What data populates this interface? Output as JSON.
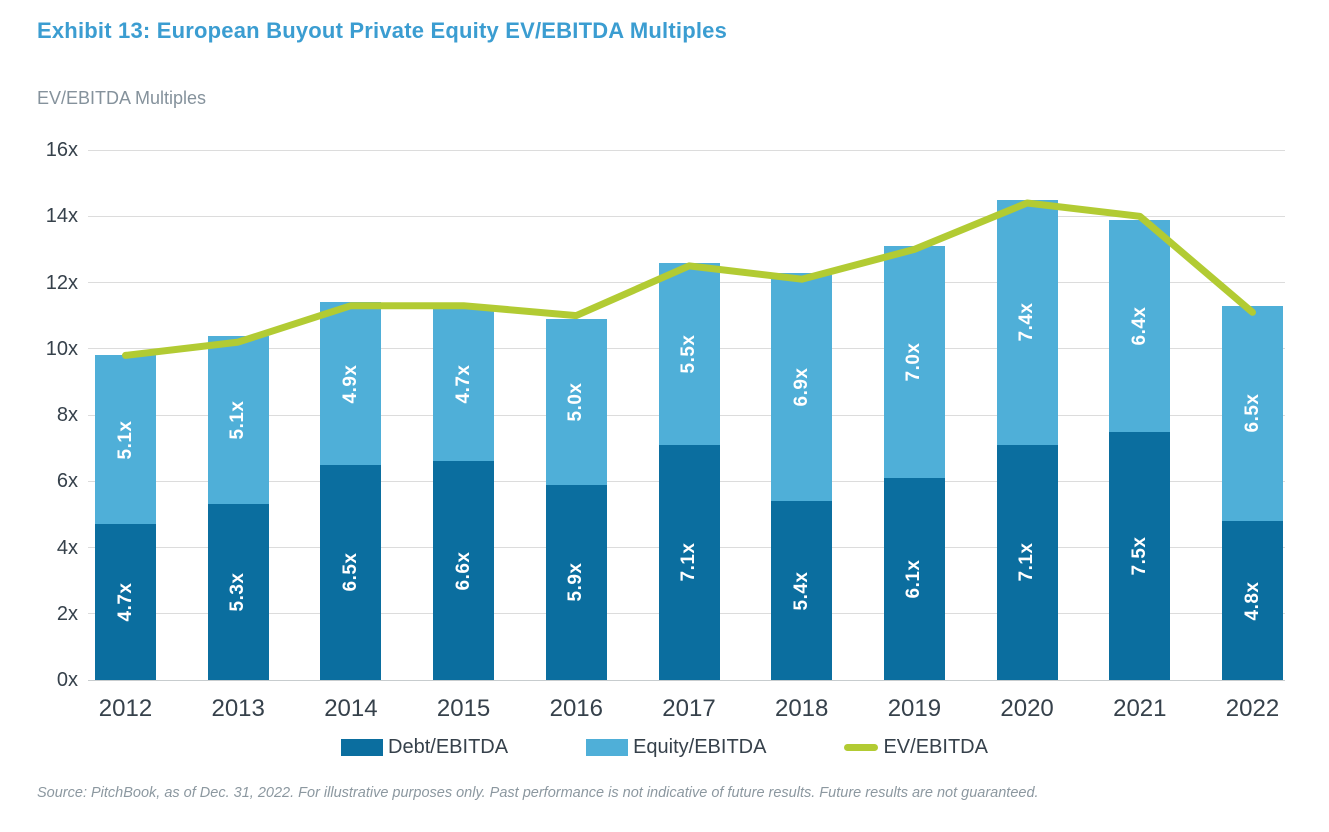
{
  "title": "Exhibit 13: European Buyout Private Equity EV/EBITDA Multiples",
  "subtitle": "EV/EBITDA Multiples",
  "source": "Source: PitchBook, as of Dec. 31, 2022. For illustrative purposes only. Past performance is not indicative of future results. Future results are not guaranteed.",
  "colors": {
    "title_text": "#3B9DD1",
    "subtitle_text": "#85929C",
    "axis_text": "#36414B",
    "source_text": "#8C98A0",
    "debt_bar": "#0B6E9F",
    "equity_bar": "#4FAFD8",
    "ev_line": "#B2CB33",
    "bar_label_text": "#FFFFFF"
  },
  "legend": {
    "items": [
      {
        "label": "Debt/EBITDA",
        "swatch": "bar",
        "color_key": "debt_bar"
      },
      {
        "label": "Equity/EBITDA",
        "swatch": "bar",
        "color_key": "equity_bar"
      },
      {
        "label": "EV/EBITDA",
        "swatch": "line",
        "color_key": "ev_line"
      }
    ]
  },
  "chart_data": {
    "type": "bar",
    "subtype": "stacked-bars-with-line-overlay",
    "title": "Exhibit 13: European Buyout Private Equity EV/EBITDA Multiples",
    "xlabel": "",
    "ylabel": "EV/EBITDA Multiples",
    "ylim": [
      0,
      16
    ],
    "yticks": [
      "0x",
      "2x",
      "4x",
      "6x",
      "8x",
      "10x",
      "12x",
      "14x",
      "16x"
    ],
    "grid": true,
    "legend_position": "bottom",
    "categories": [
      "2012",
      "2013",
      "2014",
      "2015",
      "2016",
      "2017",
      "2018",
      "2019",
      "2020",
      "2021",
      "2022"
    ],
    "series": [
      {
        "name": "Debt/EBITDA",
        "type": "bar",
        "values": [
          4.7,
          5.3,
          6.5,
          6.6,
          5.9,
          7.1,
          5.4,
          6.1,
          7.1,
          7.5,
          4.8
        ],
        "labels": [
          "4.7x",
          "5.3x",
          "6.5x",
          "6.6x",
          "5.9x",
          "7.1x",
          "5.4x",
          "6.1x",
          "7.1x",
          "7.5x",
          "4.8x"
        ]
      },
      {
        "name": "Equity/EBITDA",
        "type": "bar",
        "values": [
          5.1,
          5.1,
          4.9,
          4.7,
          5.0,
          5.5,
          6.9,
          7.0,
          7.4,
          6.4,
          6.5
        ],
        "labels": [
          "5.1x",
          "5.1x",
          "4.9x",
          "4.7x",
          "5.0x",
          "5.5x",
          "6.9x",
          "7.0x",
          "7.4x",
          "6.4x",
          "6.5x"
        ]
      },
      {
        "name": "EV/EBITDA",
        "type": "line",
        "values": [
          9.8,
          10.2,
          11.3,
          11.3,
          11.0,
          12.5,
          12.1,
          13.0,
          14.4,
          14.0,
          11.1
        ]
      }
    ]
  }
}
